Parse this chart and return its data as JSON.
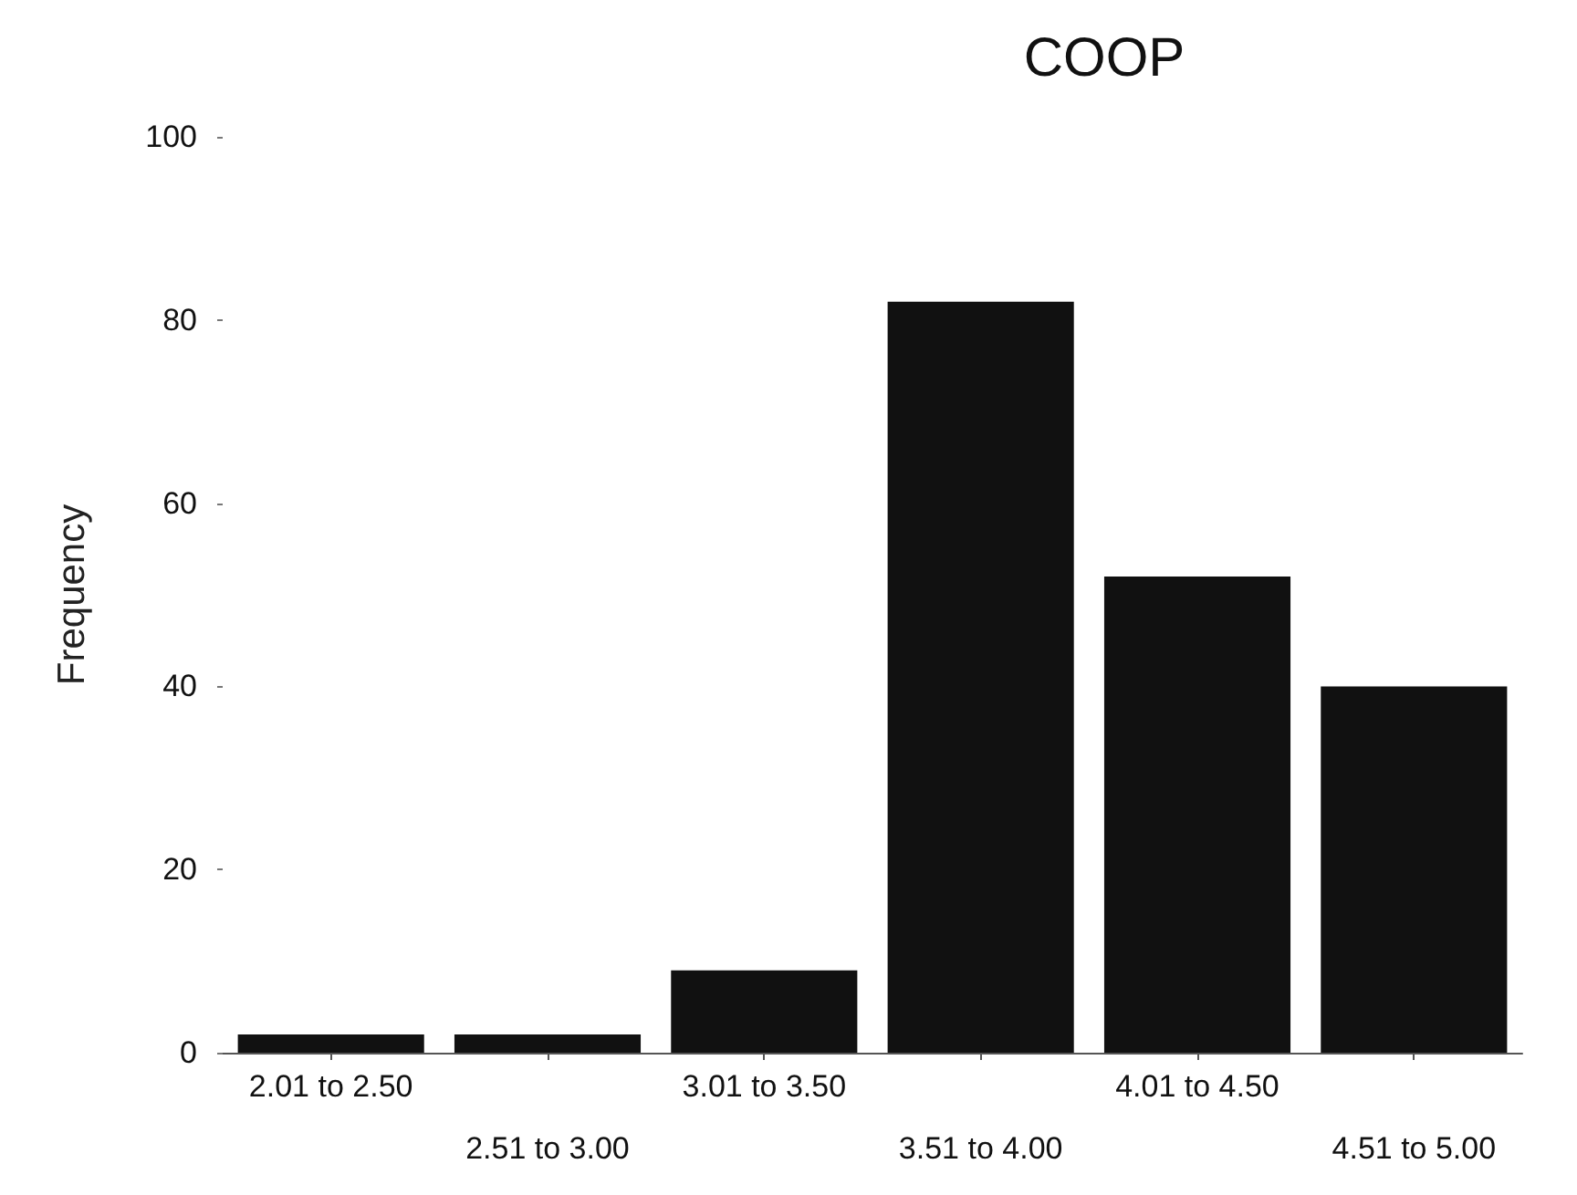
{
  "chart_data": {
    "type": "bar",
    "title": "COOP",
    "ylabel": "Frequency",
    "categories": [
      "2.01 to 2.50",
      "2.51 to 3.00",
      "3.01 to 3.50",
      "3.51 to 4.00",
      "4.01 to 4.50",
      "4.51 to 5.00"
    ],
    "values": [
      2,
      2,
      9,
      82,
      52,
      40
    ],
    "color": "#111111",
    "ylim": [
      0,
      100
    ],
    "yticks": [
      0,
      20,
      40,
      60,
      80,
      100
    ],
    "grid": false
  }
}
